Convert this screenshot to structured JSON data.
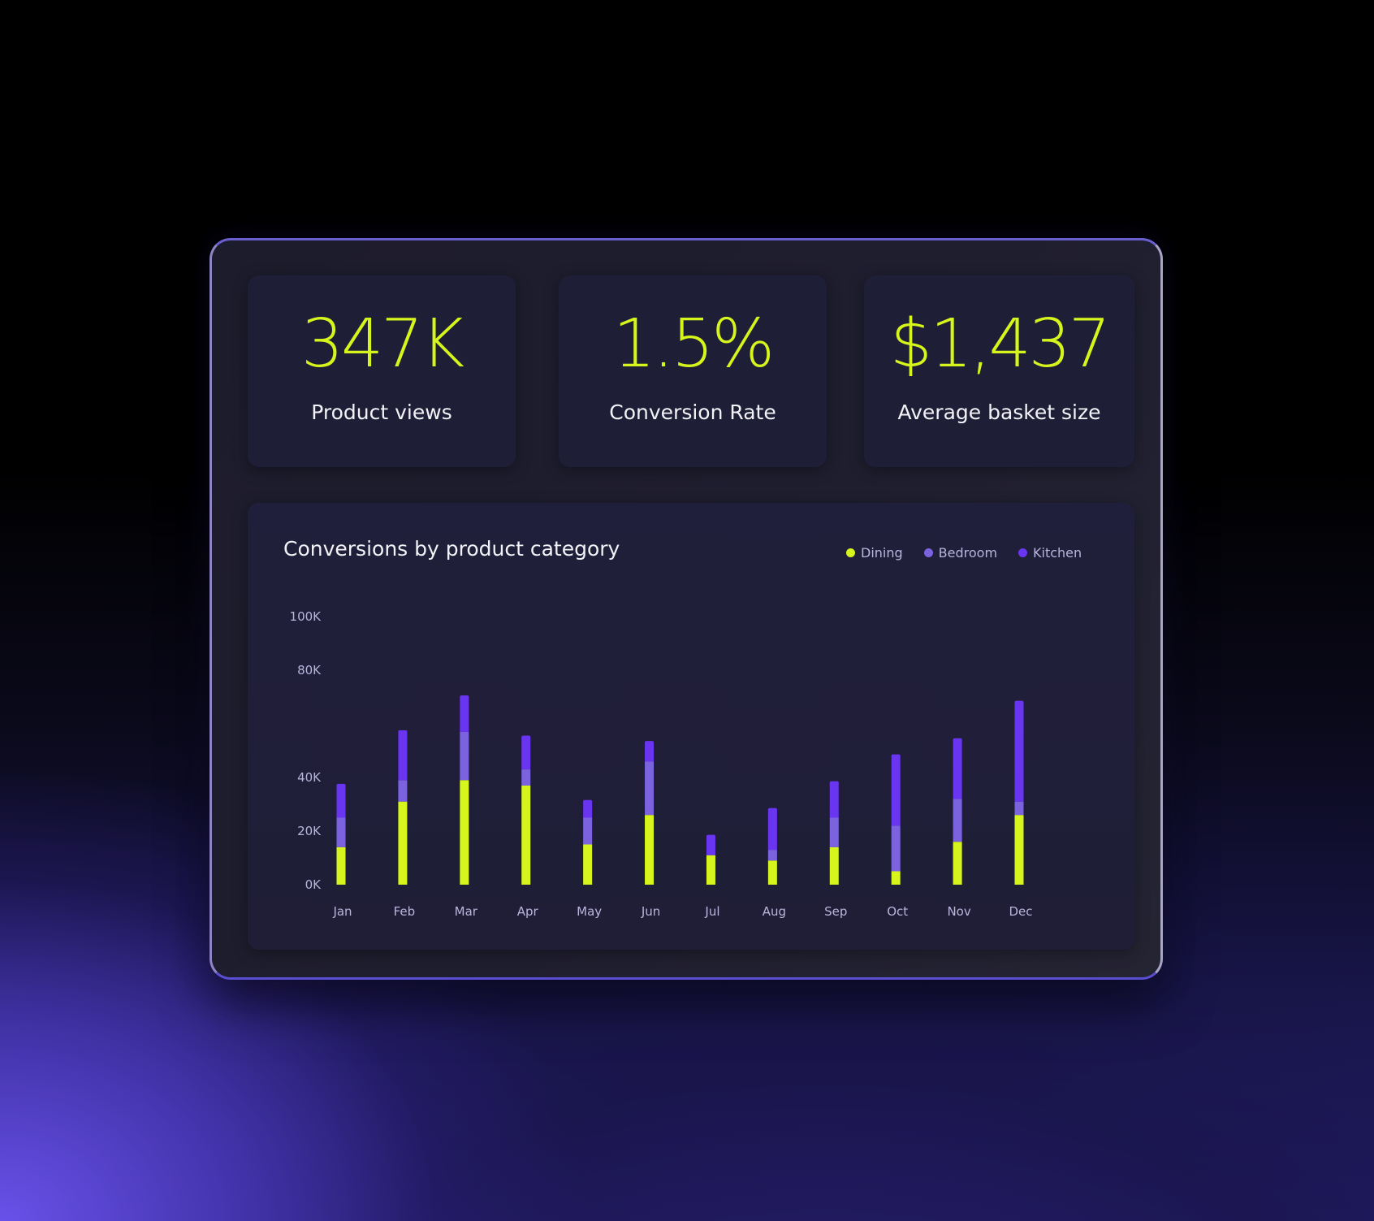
{
  "stats": [
    {
      "value": "347K",
      "label": "Product views"
    },
    {
      "value": "1.5%",
      "label": "Conversion Rate"
    },
    {
      "value": "$1,437",
      "label": "Average basket size"
    }
  ],
  "colors": {
    "accent": "#d6f51c",
    "dining": "#d6f51c",
    "bedroom": "#7b63e0",
    "kitchen": "#6a35f0"
  },
  "chart_data": {
    "type": "bar",
    "stacked": true,
    "title": "Conversions by product category",
    "xlabel": "",
    "ylabel": "",
    "categories": [
      "Jan",
      "Feb",
      "Mar",
      "Apr",
      "May",
      "Jun",
      "Jul",
      "Aug",
      "Sep",
      "Oct",
      "Nov",
      "Dec"
    ],
    "y_ticks": [
      {
        "value": 0,
        "label": "0K"
      },
      {
        "value": 20,
        "label": "20K"
      },
      {
        "value": 40,
        "label": "40K"
      },
      {
        "value": 80,
        "label": "80K"
      },
      {
        "value": 100,
        "label": "100K"
      }
    ],
    "ylim": [
      0,
      100
    ],
    "grid": false,
    "legend_position": "top-right",
    "series": [
      {
        "name": "Dining",
        "color": "#d6f51c",
        "values": [
          14,
          31,
          39,
          37,
          15,
          26,
          11,
          9,
          14,
          5,
          16,
          26
        ]
      },
      {
        "name": "Bedroom",
        "color": "#7b63e0",
        "values": [
          11,
          8,
          18,
          6,
          10,
          20,
          0,
          4,
          11,
          17,
          16,
          5
        ]
      },
      {
        "name": "Kitchen",
        "color": "#6a35f0",
        "values": [
          12,
          18,
          13,
          12,
          6,
          7,
          7,
          15,
          13,
          26,
          22,
          37
        ]
      }
    ]
  }
}
